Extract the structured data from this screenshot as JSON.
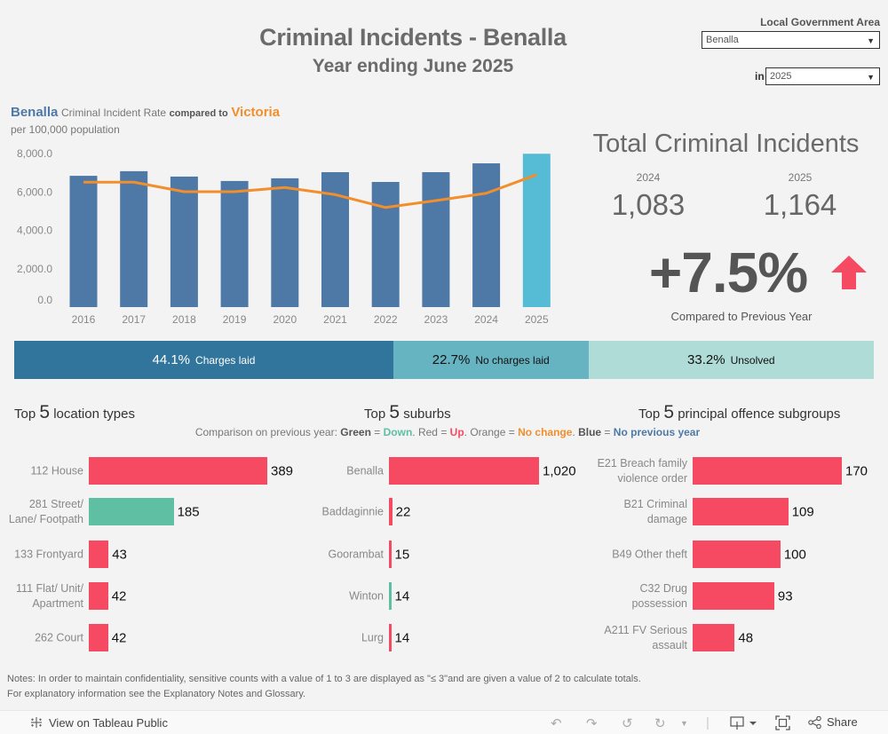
{
  "header": {
    "title": "Criminal Incidents - Benalla",
    "subtitle": "Year ending June 2025"
  },
  "filters": {
    "lga_label": "Local Government Area",
    "lga_value": "Benalla",
    "year_prefix": "in",
    "year_value": "2025"
  },
  "chart_header": {
    "lga": "Benalla",
    "middle": "Criminal Incident Rate",
    "compared": "compared to",
    "state": "Victoria",
    "subtitle": "per 100,000 population"
  },
  "chart_data": {
    "type": "bar",
    "title": "Benalla Criminal Incident Rate compared to Victoria",
    "subtitle": "per 100,000 population",
    "xlabel": "",
    "ylabel": "",
    "categories": [
      "2016",
      "2017",
      "2018",
      "2019",
      "2020",
      "2021",
      "2022",
      "2023",
      "2024",
      "2025"
    ],
    "series": [
      {
        "name": "Benalla",
        "type": "bar",
        "color": "#4e79a7",
        "highlight_color": "#56bcd6",
        "highlight_category": "2025",
        "values": [
          6840,
          7080,
          6800,
          6570,
          6710,
          7030,
          6520,
          7030,
          7490,
          7990
        ]
      },
      {
        "name": "Victoria",
        "type": "line",
        "color": "#f28e2b",
        "values": [
          6510,
          6510,
          6010,
          6010,
          6230,
          5860,
          5190,
          5550,
          5930,
          6900
        ]
      }
    ],
    "yticks": [
      "0.0",
      "2,000.0",
      "4,000.0",
      "6,000.0",
      "8,000.0"
    ],
    "ytick_values": [
      0,
      2000,
      4000,
      6000,
      8000
    ],
    "ylim": [
      0,
      8000
    ],
    "grid": false,
    "legend": "title-text"
  },
  "totals": {
    "title": "Total Criminal Incidents",
    "prev_year": "2024",
    "prev_value": "1,083",
    "curr_year": "2025",
    "curr_value": "1,164",
    "change": "+7.5%",
    "direction_icon": "up-arrow-icon",
    "compare_label": "Compared to Previous Year",
    "up_color": "#f64a62"
  },
  "outcomes": [
    {
      "pct": "44.1%",
      "label": "Charges laid",
      "share": 44.1,
      "color": "#31759c",
      "text_color": "#ffffff"
    },
    {
      "pct": "22.7%",
      "label": "No charges laid",
      "share": 22.7,
      "color": "#66b3c2",
      "text_color": "#111111"
    },
    {
      "pct": "33.2%",
      "label": "Unsolved",
      "share": 33.2,
      "color": "#afdcd6",
      "text_color": "#111111"
    }
  ],
  "legend": {
    "prefix": "Comparison on previous year:",
    "green": "Green",
    "eq1": "=",
    "down": "Down",
    "red": "Red",
    "up": "Up",
    "orange": "Orange",
    "nochange": "No change",
    "blue": "Blue",
    "noprev": "No previous year",
    "colors": {
      "down": "#5ebfa2",
      "up": "#f64a62",
      "nochange": "#f28e2b",
      "noprev": "#4e79a7"
    }
  },
  "top5": {
    "top_word": "Top",
    "five": "5",
    "locations": {
      "title": "location types",
      "items": [
        {
          "label": "112 House",
          "value": 389,
          "display": "389",
          "trend": "up"
        },
        {
          "label": "281 Street/\nLane/ Footpath",
          "value": 185,
          "display": "185",
          "trend": "down"
        },
        {
          "label": "133 Frontyard",
          "value": 43,
          "display": "43",
          "trend": "up"
        },
        {
          "label": "111 Flat/ Unit/\nApartment",
          "value": 42,
          "display": "42",
          "trend": "up"
        },
        {
          "label": "262 Court",
          "value": 42,
          "display": "42",
          "trend": "up"
        }
      ]
    },
    "suburbs": {
      "title": "suburbs",
      "items": [
        {
          "label": "Benalla",
          "value": 1020,
          "display": "1,020",
          "trend": "up"
        },
        {
          "label": "Baddaginnie",
          "value": 22,
          "display": "22",
          "trend": "up"
        },
        {
          "label": "Goorambat",
          "value": 15,
          "display": "15",
          "trend": "up"
        },
        {
          "label": "Winton",
          "value": 14,
          "display": "14",
          "trend": "down"
        },
        {
          "label": "Lurg",
          "value": 14,
          "display": "14",
          "trend": "up"
        }
      ]
    },
    "offences": {
      "title": "principal offence subgroups",
      "items": [
        {
          "label": "E21 Breach family\nviolence order",
          "value": 170,
          "display": "170",
          "trend": "up"
        },
        {
          "label": "B21 Criminal\ndamage",
          "value": 109,
          "display": "109",
          "trend": "up"
        },
        {
          "label": "B49 Other theft",
          "value": 100,
          "display": "100",
          "trend": "up"
        },
        {
          "label": "C32 Drug\npossession",
          "value": 93,
          "display": "93",
          "trend": "up"
        },
        {
          "label": "A211 FV Serious\nassault",
          "value": 48,
          "display": "48",
          "trend": "up"
        }
      ]
    }
  },
  "notes": {
    "prefix": "Notes:",
    "line1": " In order to maintain confidentiality, sensitive counts with a value of 1 to 3  are displayed as \"≤ 3\"and are given a value of 2 to calculate totals.",
    "line2": "For explanatory information see the Explanatory Notes and Glossary."
  },
  "footer": {
    "view_link": "View on Tableau Public",
    "share": "Share"
  }
}
